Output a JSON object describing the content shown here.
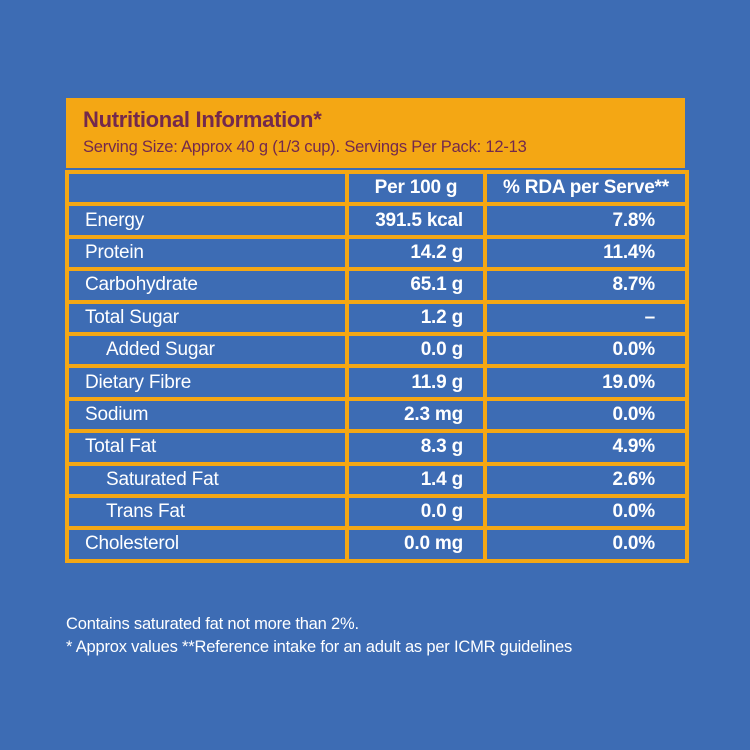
{
  "colors": {
    "background": "#3D6CB4",
    "panel_yellow": "#F4A714",
    "title_maroon": "#73294D",
    "text_white": "#FFFFFF"
  },
  "header": {
    "title": "Nutritional Information*",
    "serving_info": "Serving Size: Approx 40 g (1/3 cup). Servings Per Pack: 12-13"
  },
  "table": {
    "columns": [
      "",
      "Per 100 g",
      "% RDA per Serve**"
    ],
    "rows": [
      {
        "label": "Energy",
        "per_100g": "391.5 kcal",
        "rda": "7.8%",
        "indent": false
      },
      {
        "label": "Protein",
        "per_100g": "14.2 g",
        "rda": "11.4%",
        "indent": false
      },
      {
        "label": "Carbohydrate",
        "per_100g": "65.1 g",
        "rda": "8.7%",
        "indent": false
      },
      {
        "label": "Total Sugar",
        "per_100g": "1.2 g",
        "rda": "–",
        "indent": false
      },
      {
        "label": "Added Sugar",
        "per_100g": "0.0 g",
        "rda": "0.0%",
        "indent": true
      },
      {
        "label": "Dietary Fibre",
        "per_100g": "11.9 g",
        "rda": "19.0%",
        "indent": false
      },
      {
        "label": "Sodium",
        "per_100g": "2.3 mg",
        "rda": "0.0%",
        "indent": false
      },
      {
        "label": "Total Fat",
        "per_100g": "8.3 g",
        "rda": "4.9%",
        "indent": false
      },
      {
        "label": "Saturated Fat",
        "per_100g": "1.4 g",
        "rda": "2.6%",
        "indent": true
      },
      {
        "label": "Trans Fat",
        "per_100g": "0.0 g",
        "rda": "0.0%",
        "indent": true
      },
      {
        "label": "Cholesterol",
        "per_100g": "0.0 mg",
        "rda": "0.0%",
        "indent": false
      }
    ]
  },
  "footnotes": {
    "line1": "Contains saturated fat not more than 2%.",
    "line2": "* Approx values **Reference intake for an adult as per ICMR guidelines"
  }
}
